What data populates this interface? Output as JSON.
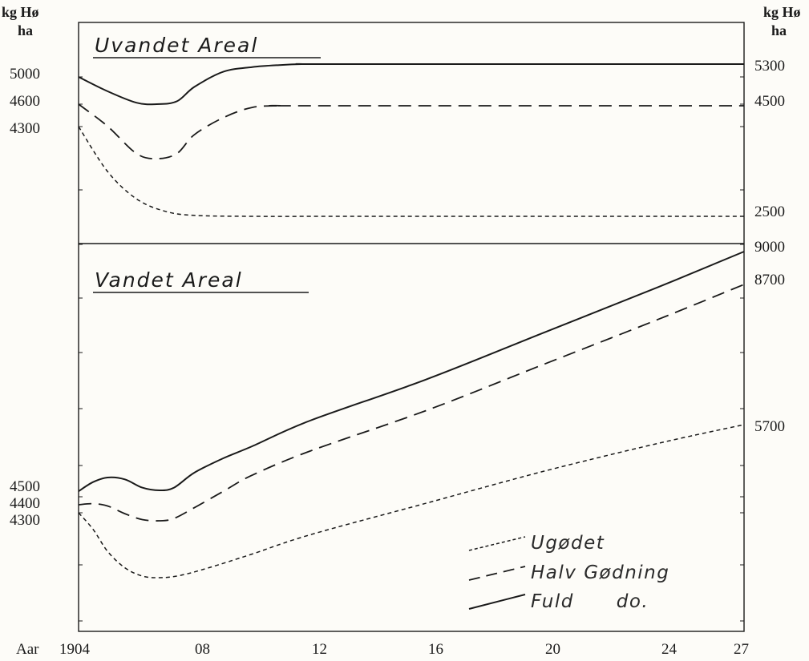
{
  "chart_data": [
    {
      "type": "line",
      "title": "Uvandet Areal",
      "unit_label": [
        "kg Hø",
        "ha"
      ],
      "x_tick_labels": [
        "Aar",
        "1904",
        "08",
        "12",
        "16",
        "20",
        "24",
        "27"
      ],
      "xlim": [
        1904,
        1927
      ],
      "left_tick_labels": [
        "5000",
        "4600",
        "4300"
      ],
      "right_tick_labels": [
        "5300",
        "4500",
        "2500",
        "9000"
      ],
      "series": [
        {
          "name": "Fuld do.",
          "style": "solid",
          "x": [
            1904,
            1905,
            1906,
            1906.7,
            1907.4,
            1908,
            1909,
            1910,
            1911,
            1911.7,
            1913,
            1927
          ],
          "y": [
            5000,
            4900,
            4820,
            4810,
            4830,
            4930,
            5120,
            5230,
            5280,
            5300,
            5300,
            5300
          ]
        },
        {
          "name": "Halv Gødning",
          "style": "dash",
          "x": [
            1904,
            1905,
            1906,
            1906.7,
            1907.4,
            1908,
            1909,
            1910,
            1911,
            1912,
            1927
          ],
          "y": [
            4600,
            4380,
            4220,
            4190,
            4220,
            4330,
            4430,
            4490,
            4500,
            4500,
            4500
          ]
        },
        {
          "name": "Ugødet",
          "style": "dot",
          "x": [
            1904,
            1905,
            1906,
            1907,
            1908,
            1910,
            1914,
            1927
          ],
          "y": [
            4300,
            3400,
            2850,
            2600,
            2520,
            2500,
            2500,
            2500
          ]
        }
      ]
    },
    {
      "type": "line",
      "title": "Vandet Areal",
      "left_tick_labels": [
        "4500",
        "4400",
        "4300"
      ],
      "right_tick_labels": [
        "9000",
        "8700",
        "5700"
      ],
      "xlim": [
        1904,
        1927
      ],
      "series": [
        {
          "name": "Fuld do.",
          "style": "solid",
          "x": [
            1904,
            1904.5,
            1905,
            1905.6,
            1906.2,
            1906.8,
            1907.3,
            1908,
            1909,
            1910,
            1912,
            1916,
            1920,
            1924,
            1927
          ],
          "y": [
            4500,
            4600,
            4650,
            4630,
            4540,
            4510,
            4540,
            4750,
            5050,
            5300,
            5700,
            6500,
            7400,
            8300,
            9000
          ]
        },
        {
          "name": "Halv Gødning",
          "style": "dash",
          "x": [
            1904,
            1904.5,
            1905,
            1905.6,
            1906.2,
            1906.8,
            1907.3,
            1908,
            1909,
            1910,
            1912,
            1916,
            1920,
            1924,
            1927
          ],
          "y": [
            4400,
            4420,
            4380,
            4250,
            4150,
            4130,
            4170,
            4350,
            4650,
            4950,
            5400,
            6200,
            7100,
            8000,
            8700
          ]
        },
        {
          "name": "Ugødet",
          "style": "dot",
          "x": [
            1904,
            1904.5,
            1905,
            1905.6,
            1906.2,
            1906.8,
            1907.5,
            1908.5,
            1910,
            1912,
            1916,
            1920,
            1924,
            1927
          ],
          "y": [
            4300,
            4000,
            3600,
            3300,
            3150,
            3120,
            3160,
            3300,
            3550,
            3900,
            4450,
            4950,
            5400,
            5700
          ]
        }
      ]
    }
  ],
  "legend": {
    "placement": "bottom-right",
    "items": [
      {
        "label": "Ugødet",
        "style": "dot"
      },
      {
        "label": "Halv Gødning",
        "style": "dash"
      },
      {
        "label": "Fuld      do.",
        "style": "solid"
      }
    ]
  },
  "colors": {
    "ink": "#1a1a1a",
    "paper": "#fdfcf8"
  }
}
